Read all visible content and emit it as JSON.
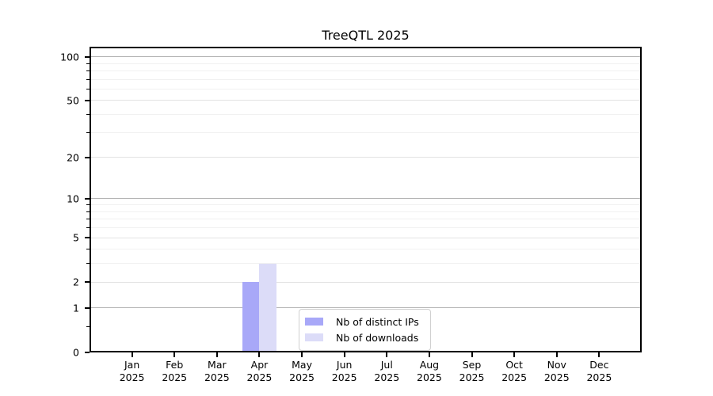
{
  "chart_data": {
    "type": "bar",
    "title": "TreeQTL 2025",
    "categories": [
      "Jan 2025",
      "Feb 2025",
      "Mar 2025",
      "Apr 2025",
      "May 2025",
      "Jun 2025",
      "Jul 2025",
      "Aug 2025",
      "Sep 2025",
      "Oct 2025",
      "Nov 2025",
      "Dec 2025"
    ],
    "series": [
      {
        "name": "Nb of distinct IPs",
        "color": "#a8a8f8",
        "values": [
          0,
          0,
          0,
          2,
          0,
          0,
          0,
          0,
          0,
          0,
          0,
          0
        ]
      },
      {
        "name": "Nb of downloads",
        "color": "#dcdcf8",
        "values": [
          0,
          0,
          0,
          3,
          0,
          0,
          0,
          0,
          0,
          0,
          0,
          0
        ]
      }
    ],
    "xlabel": "",
    "ylabel": "",
    "yscale": "log1p",
    "ylim": [
      0,
      117
    ],
    "y_major_ticks": [
      0,
      1,
      2,
      5,
      10,
      20,
      50,
      100
    ],
    "y_minor_ticks": [
      0.5,
      3,
      4,
      6,
      7,
      8,
      9,
      30,
      40,
      60,
      70,
      80,
      90
    ],
    "grid": "horizontal",
    "legend_position": "lower center"
  },
  "colors": {
    "axis": "#000000",
    "grid_decade": "#b2b2b2",
    "grid_major": "#e3e3e3",
    "grid_minor": "#f1f1f1",
    "legend_border": "#d0d0d0",
    "background": "#ffffff"
  }
}
